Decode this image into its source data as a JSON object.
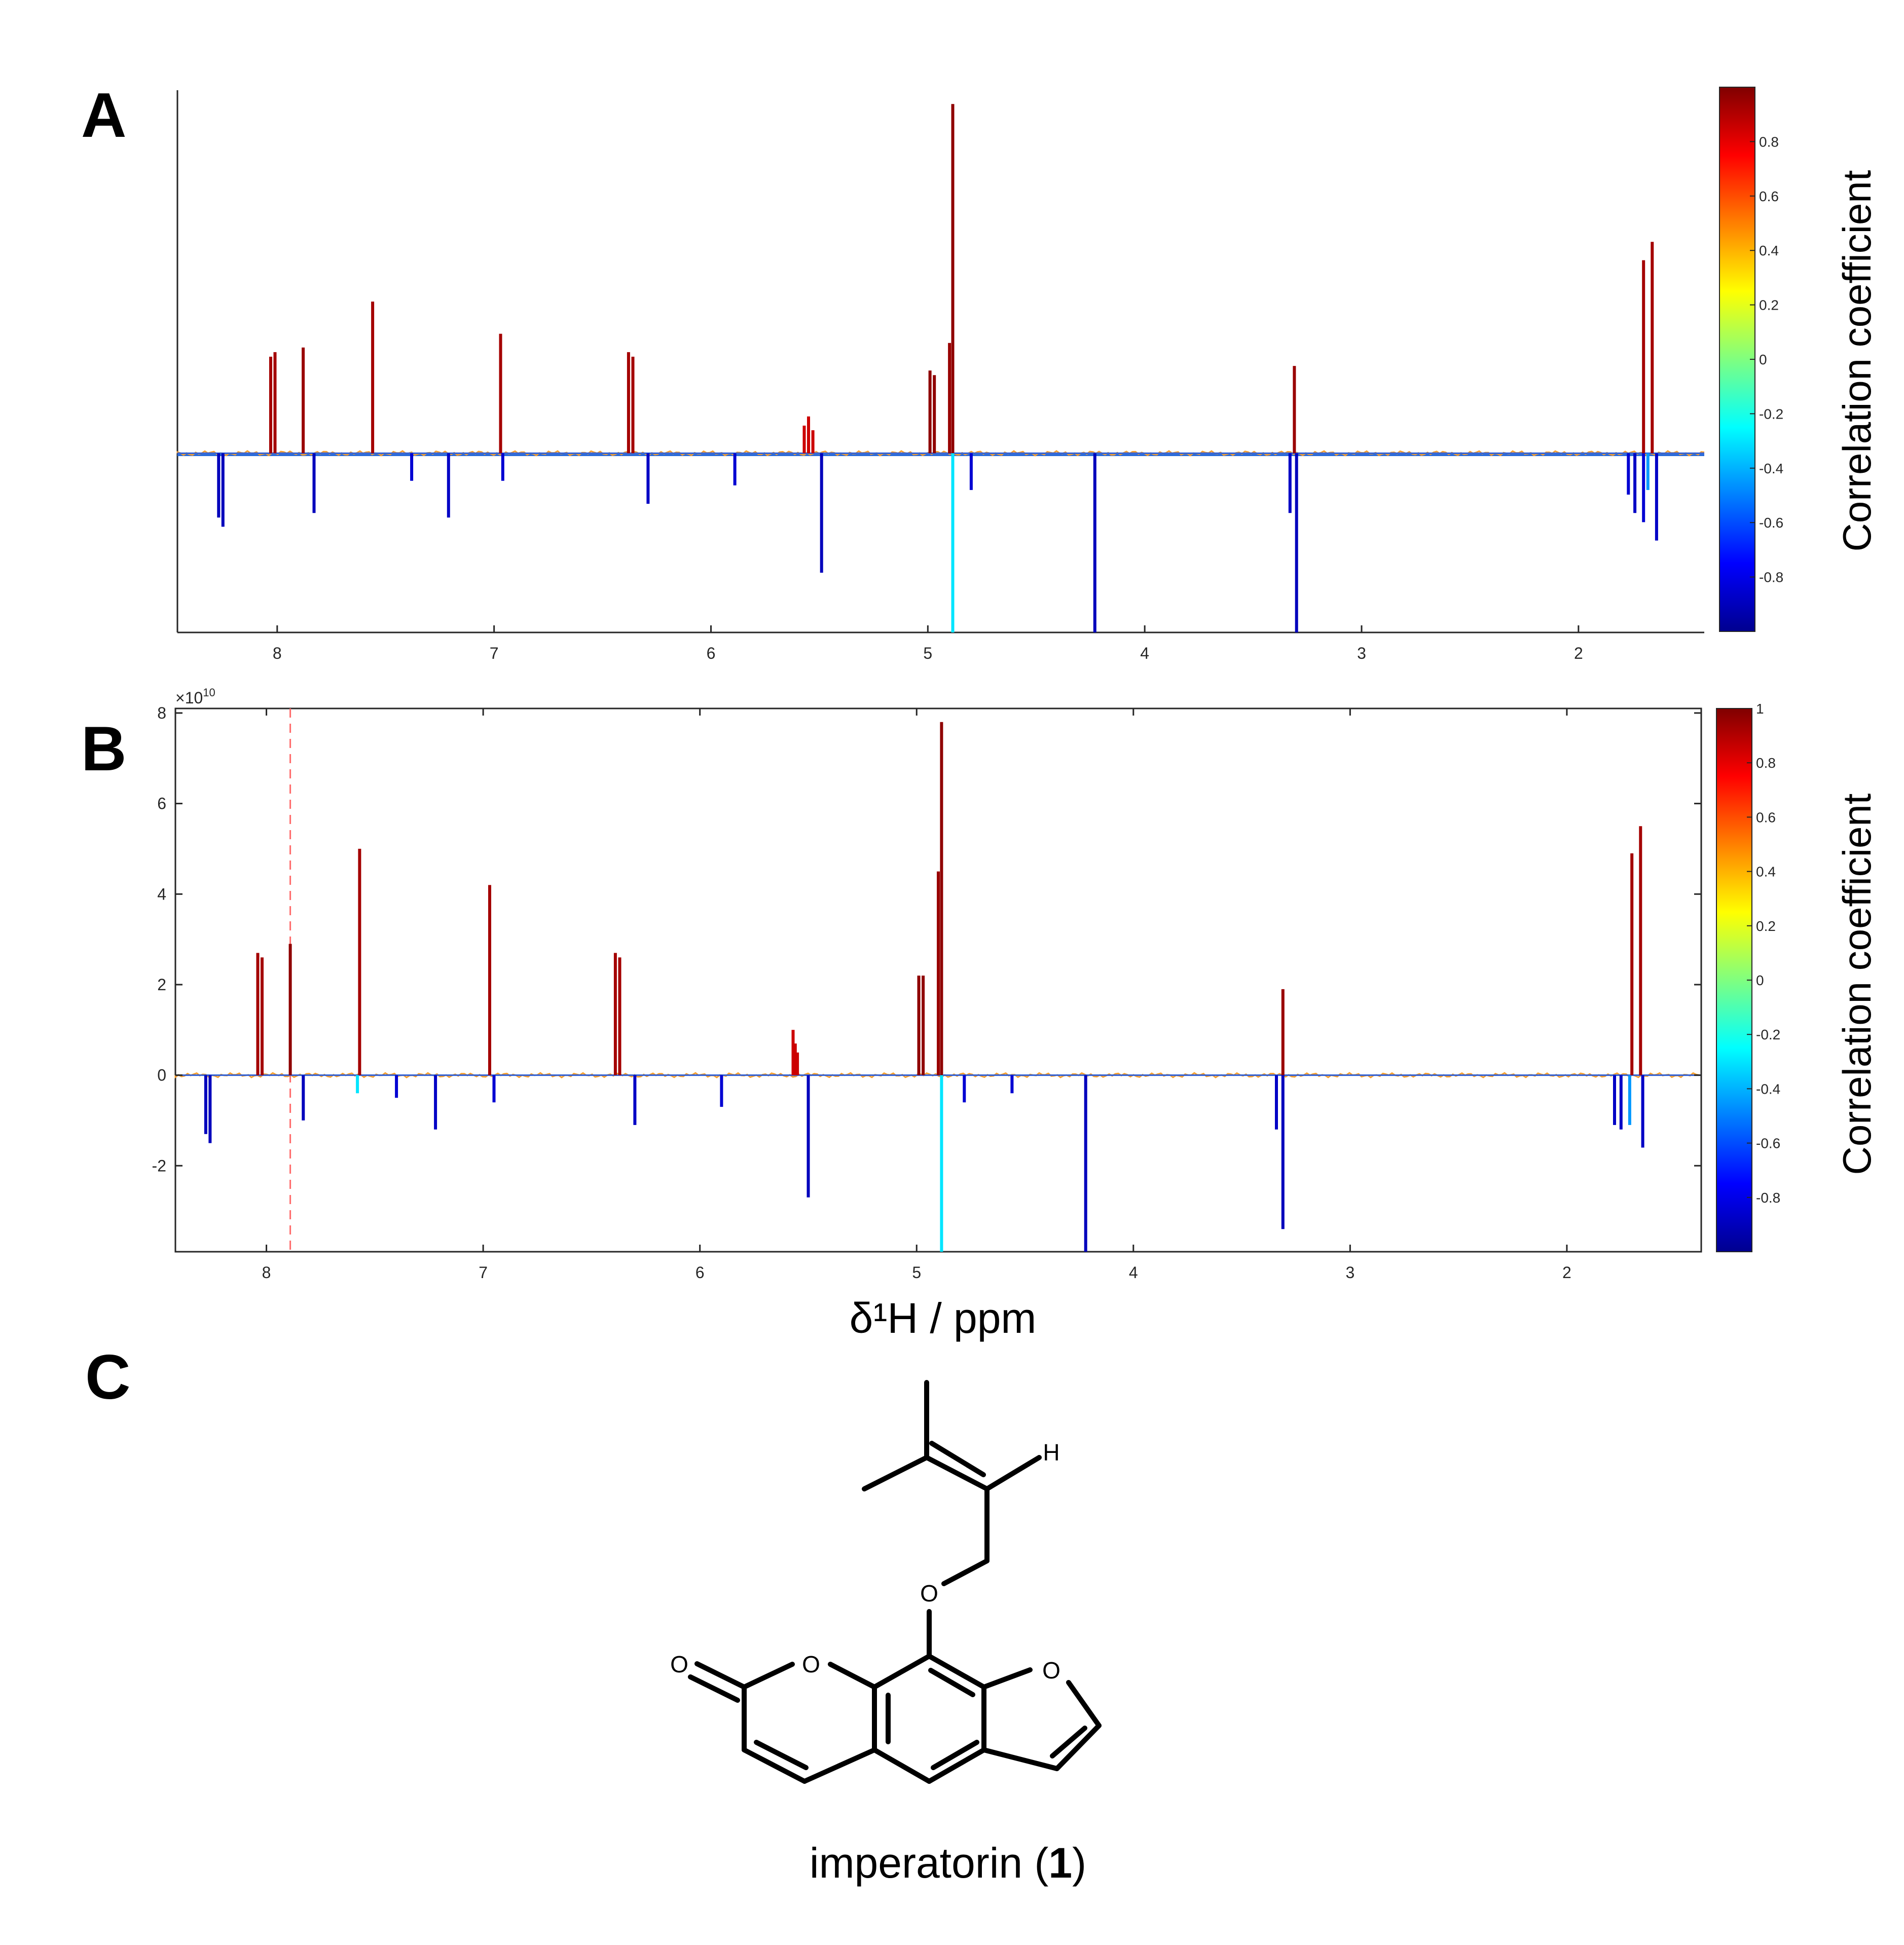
{
  "panels": {
    "a": "A",
    "b": "B",
    "c": "C"
  },
  "chart_data": [
    {
      "type": "line",
      "panel": "A",
      "xlabel": "",
      "ylabel": "",
      "x_reversed": true,
      "xlim": [
        8.46,
        1.42
      ],
      "x_ticks": [
        8,
        7,
        6,
        5,
        4,
        3,
        2
      ],
      "y_ticks_shown": false,
      "ylim": [
        -3.9,
        7.9
      ],
      "colorbar": {
        "label": "Correlation coefficient",
        "range": [
          -1,
          1
        ],
        "ticks": [
          0.8,
          0.6,
          0.4,
          0.2,
          0,
          -0.2,
          -0.4,
          -0.6,
          -0.8
        ]
      },
      "peaks": [
        {
          "x": 8.03,
          "y": 2.1,
          "r": 0.93
        },
        {
          "x": 8.01,
          "y": 2.2,
          "r": 0.93
        },
        {
          "x": 7.88,
          "y": 2.3,
          "r": 0.95
        },
        {
          "x": 7.56,
          "y": 3.3,
          "r": 0.93
        },
        {
          "x": 6.97,
          "y": 2.6,
          "r": 0.93
        },
        {
          "x": 6.38,
          "y": 2.2,
          "r": 0.93
        },
        {
          "x": 6.36,
          "y": 2.1,
          "r": 0.93
        },
        {
          "x": 5.57,
          "y": 0.6,
          "r": 0.85
        },
        {
          "x": 5.55,
          "y": 0.8,
          "r": 0.85
        },
        {
          "x": 5.53,
          "y": 0.5,
          "r": 0.85
        },
        {
          "x": 4.99,
          "y": 1.8,
          "r": 0.97
        },
        {
          "x": 4.97,
          "y": 1.7,
          "r": 0.97
        },
        {
          "x": 4.9,
          "y": 2.4,
          "r": 0.95
        },
        {
          "x": 4.885,
          "y": 7.6,
          "r": 0.97
        },
        {
          "x": 3.31,
          "y": 1.9,
          "r": 0.95
        },
        {
          "x": 1.7,
          "y": 4.2,
          "r": 0.93
        },
        {
          "x": 1.66,
          "y": 4.6,
          "r": 0.93
        },
        {
          "x": 8.27,
          "y": -1.4,
          "r": -0.9
        },
        {
          "x": 8.25,
          "y": -1.6,
          "r": -0.9
        },
        {
          "x": 7.83,
          "y": -1.3,
          "r": -0.9
        },
        {
          "x": 7.38,
          "y": -0.6,
          "r": -0.85
        },
        {
          "x": 7.21,
          "y": -1.4,
          "r": -0.88
        },
        {
          "x": 6.96,
          "y": -0.6,
          "r": -0.85
        },
        {
          "x": 6.29,
          "y": -1.1,
          "r": -0.88
        },
        {
          "x": 5.89,
          "y": -0.7,
          "r": -0.85
        },
        {
          "x": 5.49,
          "y": -2.6,
          "r": -0.9
        },
        {
          "x": 4.885,
          "y": -3.9,
          "r": -0.3
        },
        {
          "x": 4.8,
          "y": -0.8,
          "r": -0.85
        },
        {
          "x": 4.23,
          "y": -3.9,
          "r": -0.9
        },
        {
          "x": 3.33,
          "y": -1.3,
          "r": -0.88
        },
        {
          "x": 3.3,
          "y": -3.9,
          "r": -0.9
        },
        {
          "x": 1.77,
          "y": -0.9,
          "r": -0.85
        },
        {
          "x": 1.74,
          "y": -1.3,
          "r": -0.88
        },
        {
          "x": 1.7,
          "y": -1.5,
          "r": -0.85
        },
        {
          "x": 1.68,
          "y": -0.8,
          "r": -0.45
        },
        {
          "x": 1.64,
          "y": -1.9,
          "r": -0.88
        }
      ]
    },
    {
      "type": "line",
      "panel": "B",
      "xlabel": "δ¹H / ppm",
      "ylabel": "",
      "x_reversed": true,
      "xlim": [
        8.42,
        1.38
      ],
      "x_ticks": [
        8,
        7,
        6,
        5,
        4,
        3,
        2
      ],
      "ylim": [
        -3.9,
        8.1
      ],
      "y_ticks": [
        8,
        6,
        4,
        2,
        0,
        -2
      ],
      "y_exponent": "×10",
      "y_exponent_power": "10",
      "reference_line_x": 7.89,
      "colorbar": {
        "label": "Correlation coefficient",
        "range": [
          -1,
          1
        ],
        "ticks": [
          1,
          0.8,
          0.6,
          0.4,
          0.2,
          0,
          -0.2,
          -0.4,
          -0.6,
          -0.8
        ]
      },
      "peaks": [
        {
          "x": 8.04,
          "y": 2.7,
          "r": 0.93
        },
        {
          "x": 8.02,
          "y": 2.6,
          "r": 0.93
        },
        {
          "x": 7.89,
          "y": 2.9,
          "r": 0.97
        },
        {
          "x": 7.57,
          "y": 5.0,
          "r": 0.93
        },
        {
          "x": 6.97,
          "y": 4.2,
          "r": 0.93
        },
        {
          "x": 6.39,
          "y": 2.7,
          "r": 0.93
        },
        {
          "x": 6.37,
          "y": 2.6,
          "r": 0.93
        },
        {
          "x": 5.57,
          "y": 1.0,
          "r": 0.85
        },
        {
          "x": 5.56,
          "y": 0.7,
          "r": 0.85
        },
        {
          "x": 5.55,
          "y": 0.5,
          "r": 0.85
        },
        {
          "x": 4.99,
          "y": 2.2,
          "r": 0.97
        },
        {
          "x": 4.97,
          "y": 2.2,
          "r": 0.97
        },
        {
          "x": 4.885,
          "y": 7.8,
          "r": 0.97
        },
        {
          "x": 4.9,
          "y": 4.5,
          "r": 0.95
        },
        {
          "x": 3.31,
          "y": 1.9,
          "r": 0.95
        },
        {
          "x": 1.7,
          "y": 4.9,
          "r": 0.93
        },
        {
          "x": 1.66,
          "y": 5.5,
          "r": 0.93
        },
        {
          "x": 8.28,
          "y": -1.3,
          "r": -0.9
        },
        {
          "x": 8.26,
          "y": -1.5,
          "r": -0.9
        },
        {
          "x": 7.83,
          "y": -1.0,
          "r": -0.9
        },
        {
          "x": 7.58,
          "y": -0.4,
          "r": -0.3
        },
        {
          "x": 7.4,
          "y": -0.5,
          "r": -0.85
        },
        {
          "x": 7.22,
          "y": -1.2,
          "r": -0.88
        },
        {
          "x": 6.95,
          "y": -0.6,
          "r": -0.85
        },
        {
          "x": 6.3,
          "y": -1.1,
          "r": -0.88
        },
        {
          "x": 5.9,
          "y": -0.7,
          "r": -0.85
        },
        {
          "x": 5.5,
          "y": -2.7,
          "r": -0.9
        },
        {
          "x": 4.885,
          "y": -3.9,
          "r": -0.3
        },
        {
          "x": 4.78,
          "y": -0.6,
          "r": -0.85
        },
        {
          "x": 4.56,
          "y": -0.4,
          "r": -0.85
        },
        {
          "x": 4.22,
          "y": -3.9,
          "r": -0.9
        },
        {
          "x": 3.34,
          "y": -1.2,
          "r": -0.88
        },
        {
          "x": 3.31,
          "y": -3.4,
          "r": -0.9
        },
        {
          "x": 1.78,
          "y": -1.1,
          "r": -0.88
        },
        {
          "x": 1.75,
          "y": -1.2,
          "r": -0.88
        },
        {
          "x": 1.71,
          "y": -1.1,
          "r": -0.45
        },
        {
          "x": 1.65,
          "y": -1.6,
          "r": -0.88
        }
      ]
    }
  ],
  "structure": {
    "atoms": {
      "o1": "O",
      "o2": "O",
      "o3": "O",
      "o4": "O",
      "h": "H"
    },
    "caption_prefix": "imperatorin (",
    "caption_number": "1",
    "caption_suffix": ")"
  }
}
